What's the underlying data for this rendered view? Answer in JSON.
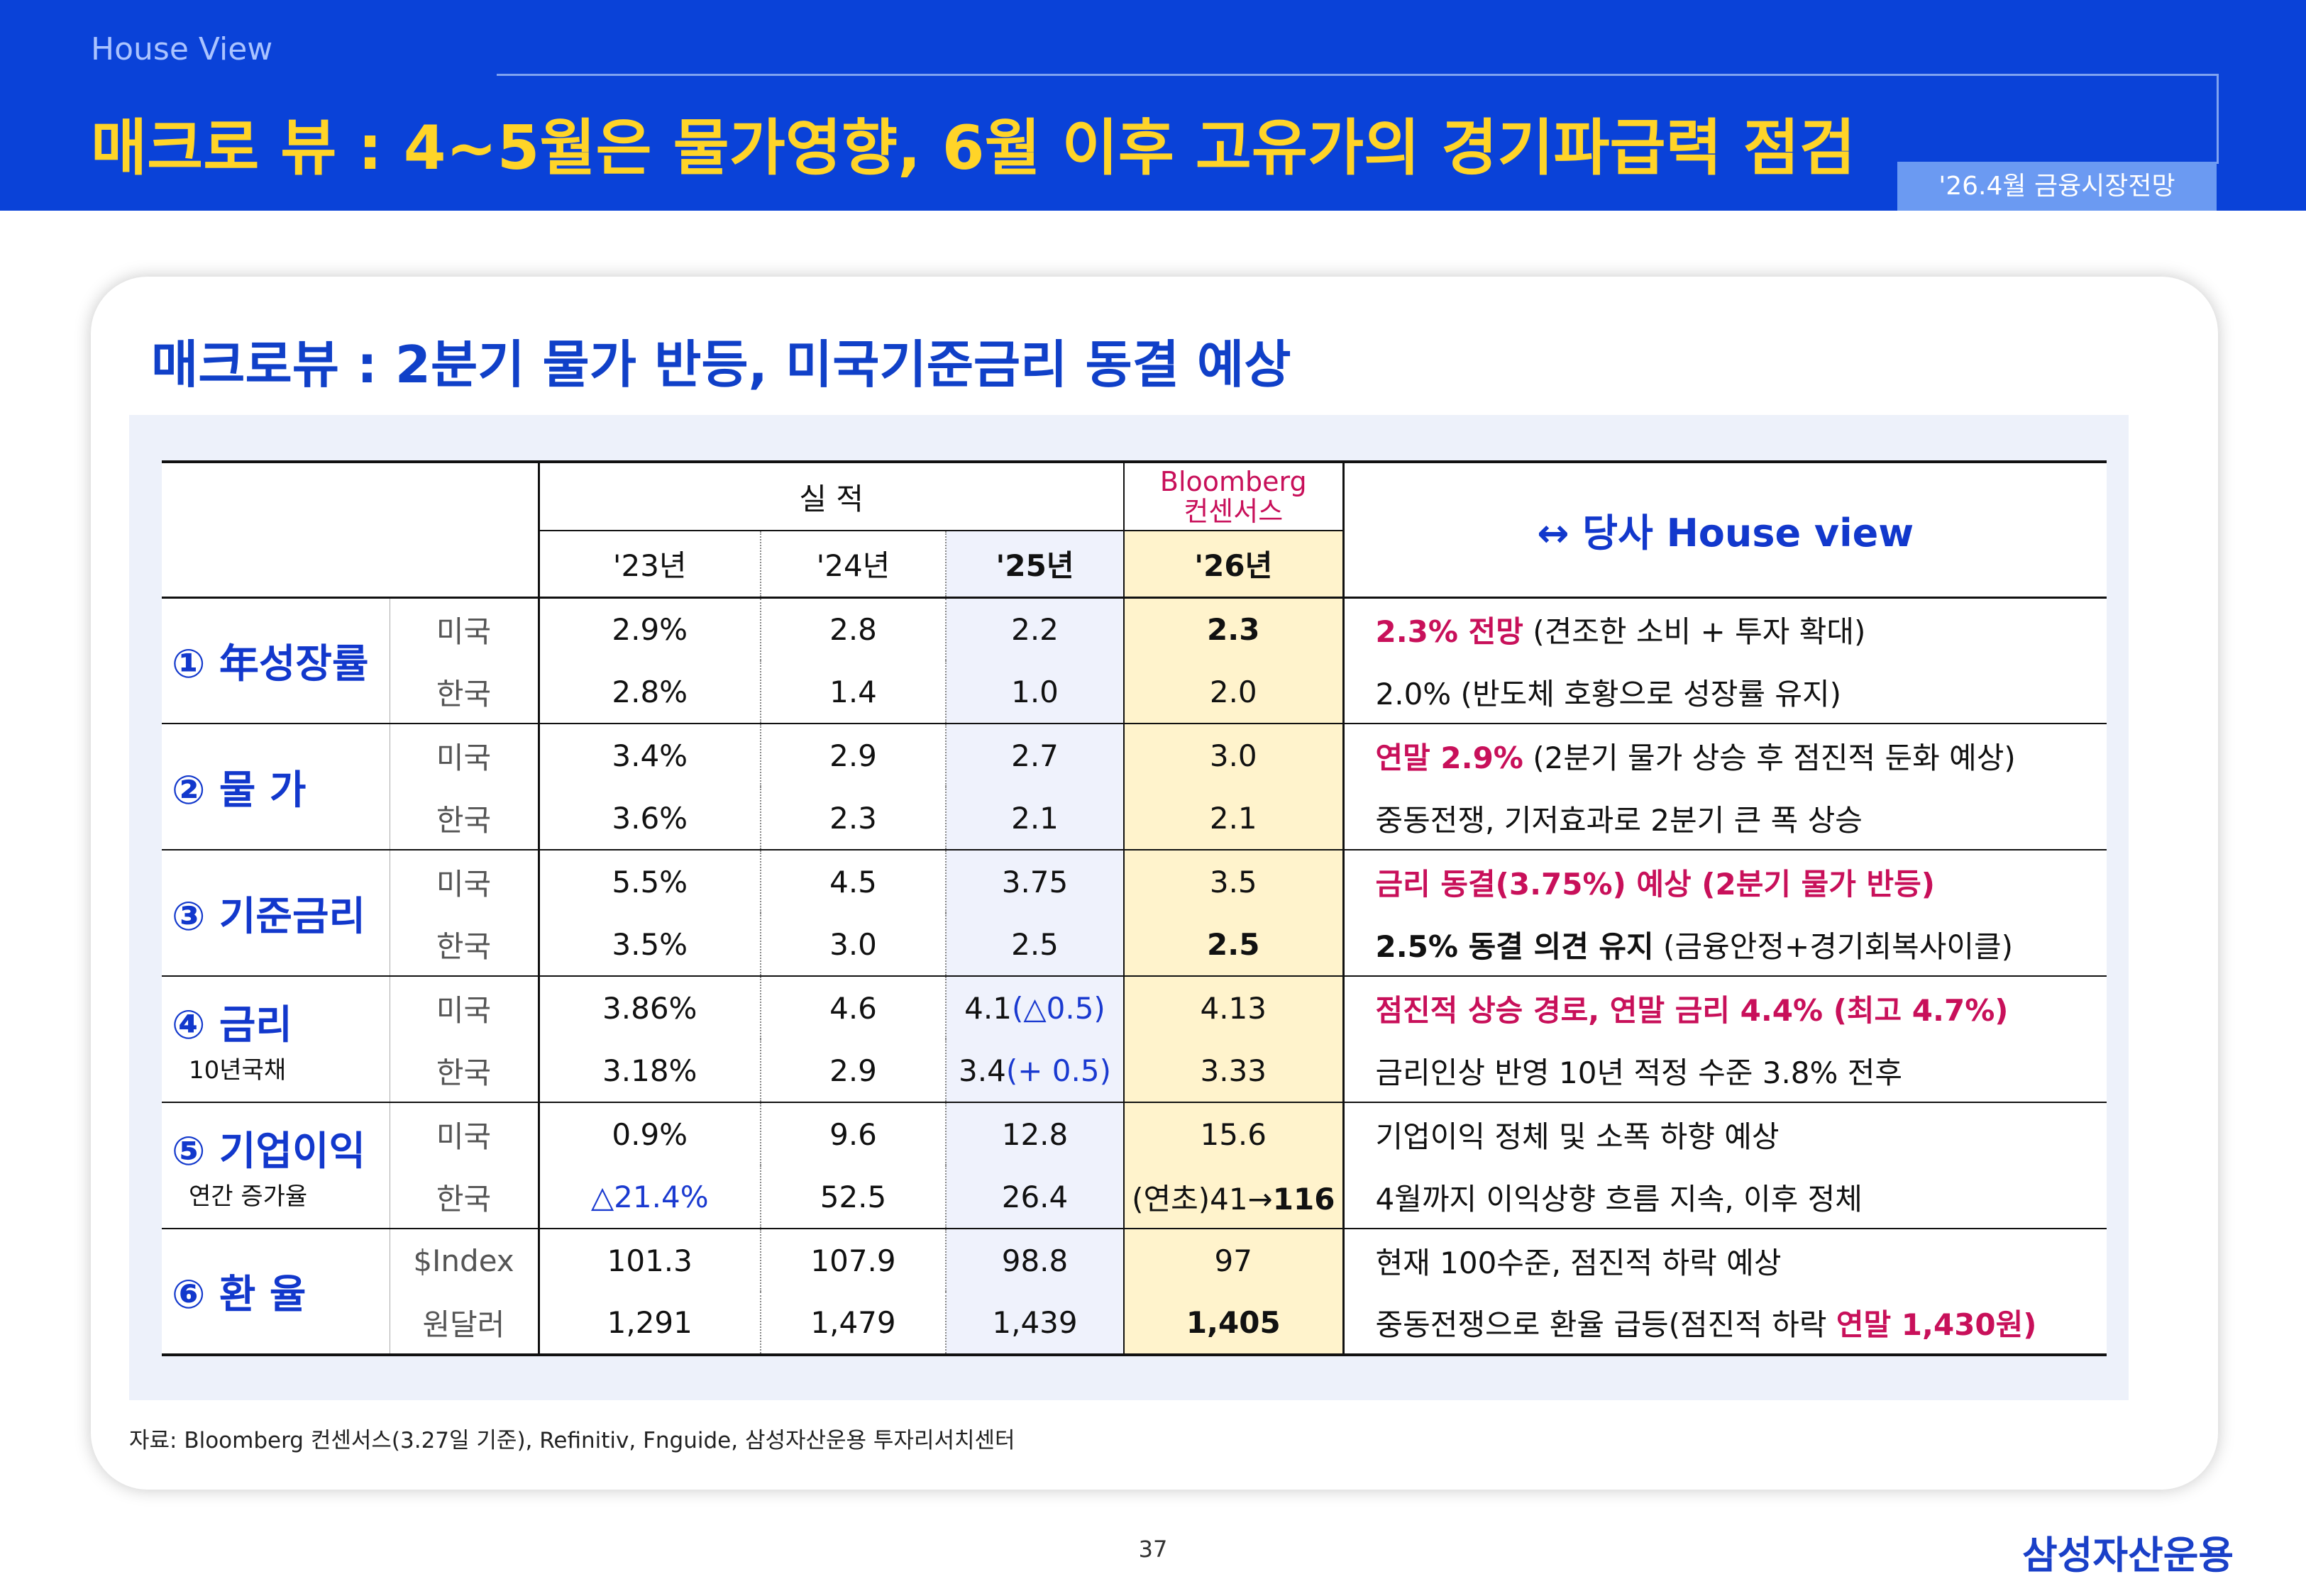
{
  "header": {
    "label": "House View",
    "title": "매크로 뷰 : 4~5월은 물가영향, 6월 이후 고유가의 경기파급력 점검",
    "badge": "'26.4월 금융시장전망"
  },
  "card": {
    "title": "매크로뷰 : 2분기 물가 반등, 미국기준금리 동결 예상"
  },
  "table": {
    "head": {
      "actual": "실 적",
      "consensus": [
        "Bloomberg",
        "컨센서스"
      ],
      "view": "↔ 당사 House view",
      "years": [
        "'23년",
        "'24년",
        "'25년",
        "'26년"
      ]
    },
    "groups": [
      {
        "name": "① 年성장률",
        "rows": [
          {
            "country": "미국",
            "cells": [
              "2.9%",
              "2.8",
              "2.2",
              [
                {
                  "t": "2.3",
                  "c": "bold"
                }
              ]
            ],
            "view": [
              {
                "t": "2.3% 전망",
                "c": "red"
              },
              {
                "t": " (견조한 소비 + 투자 확대)",
                "c": "plain"
              }
            ]
          },
          {
            "country": "한국",
            "cells": [
              "2.8%",
              "1.4",
              "1.0",
              "2.0"
            ],
            "view": [
              {
                "t": "2.0% (반도체 호황으로 성장률 유지)",
                "c": "plain"
              }
            ]
          }
        ]
      },
      {
        "name": "② 물 가",
        "rows": [
          {
            "country": "미국",
            "cells": [
              "3.4%",
              "2.9",
              "2.7",
              "3.0"
            ],
            "view": [
              {
                "t": "연말 2.9%",
                "c": "red"
              },
              {
                "t": " (2분기 물가 상승 후 점진적 둔화 예상)",
                "c": "plain"
              }
            ]
          },
          {
            "country": "한국",
            "cells": [
              "3.6%",
              "2.3",
              "2.1",
              "2.1"
            ],
            "view": [
              {
                "t": "중동전쟁, 기저효과로 2분기 큰 폭 상승",
                "c": "plain"
              }
            ]
          }
        ]
      },
      {
        "name": "③ 기준금리",
        "rows": [
          {
            "country": "미국",
            "cells": [
              "5.5%",
              "4.5",
              "3.75",
              "3.5"
            ],
            "view": [
              {
                "t": "금리 동결(3.75%) 예상 (2분기 물가 반등)",
                "c": "red"
              }
            ]
          },
          {
            "country": "한국",
            "cells": [
              "3.5%",
              "3.0",
              "2.5",
              [
                {
                  "t": "2.5",
                  "c": "bold"
                }
              ]
            ],
            "view": [
              {
                "t": "2.5% 동결 의견 유지",
                "c": "bold"
              },
              {
                "t": " (금융안정+경기회복사이클)",
                "c": "plain"
              }
            ]
          }
        ]
      },
      {
        "name": "④ 금리",
        "sub": "10년국채",
        "rows": [
          {
            "country": "미국",
            "cells": [
              "3.86%",
              "4.6",
              [
                {
                  "t": "4.1",
                  "c": "plain"
                },
                {
                  "t": "(△0.5)",
                  "c": "blue"
                }
              ],
              "4.13"
            ],
            "view": [
              {
                "t": "점진적 상승 경로, 연말 금리 4.4% (최고 4.7%)",
                "c": "red"
              }
            ]
          },
          {
            "country": "한국",
            "cells": [
              "3.18%",
              "2.9",
              [
                {
                  "t": "3.4",
                  "c": "plain"
                },
                {
                  "t": "(+ 0.5)",
                  "c": "blue"
                }
              ],
              "3.33"
            ],
            "view": [
              {
                "t": "금리인상 반영 10년 적정 수준 3.8% 전후",
                "c": "plain"
              }
            ]
          }
        ]
      },
      {
        "name": "⑤ 기업이익",
        "sub": "연간 증가율",
        "rows": [
          {
            "country": "미국",
            "cells": [
              "0.9%",
              "9.6",
              "12.8",
              "15.6"
            ],
            "view": [
              {
                "t": "기업이익 정체 및 소폭 하향 예상",
                "c": "plain"
              }
            ]
          },
          {
            "country": "한국",
            "cells": [
              [
                {
                  "t": "△21.4%",
                  "c": "blue"
                }
              ],
              "52.5",
              "26.4",
              [
                {
                  "t": "(연초)41→",
                  "c": "plain"
                },
                {
                  "t": "116",
                  "c": "bold"
                }
              ]
            ],
            "view": [
              {
                "t": "4월까지 이익상향 흐름 지속, 이후 정체",
                "c": "plain"
              }
            ]
          }
        ]
      },
      {
        "name": "⑥ 환 율",
        "rows": [
          {
            "country": "$Index",
            "cells": [
              "101.3",
              "107.9",
              "98.8",
              "97"
            ],
            "view": [
              {
                "t": "현재 100수준, 점진적 하락 예상",
                "c": "plain"
              }
            ]
          },
          {
            "country": "원달러",
            "cells": [
              "1,291",
              "1,479",
              "1,439",
              [
                {
                  "t": "1,405",
                  "c": "bold"
                }
              ]
            ],
            "view": [
              {
                "t": "중동전쟁으로 환율 급등(점진적 하락 ",
                "c": "plain"
              },
              {
                "t": "연말 1,430원)",
                "c": "red"
              }
            ]
          }
        ]
      }
    ]
  },
  "footer": {
    "source": "자료: Bloomberg 컨센서스(3.27일 기준), Refinitiv, Fnguide, 삼성자산운용 투자리서치센터",
    "page": "37",
    "logo": "삼성자산운용"
  }
}
